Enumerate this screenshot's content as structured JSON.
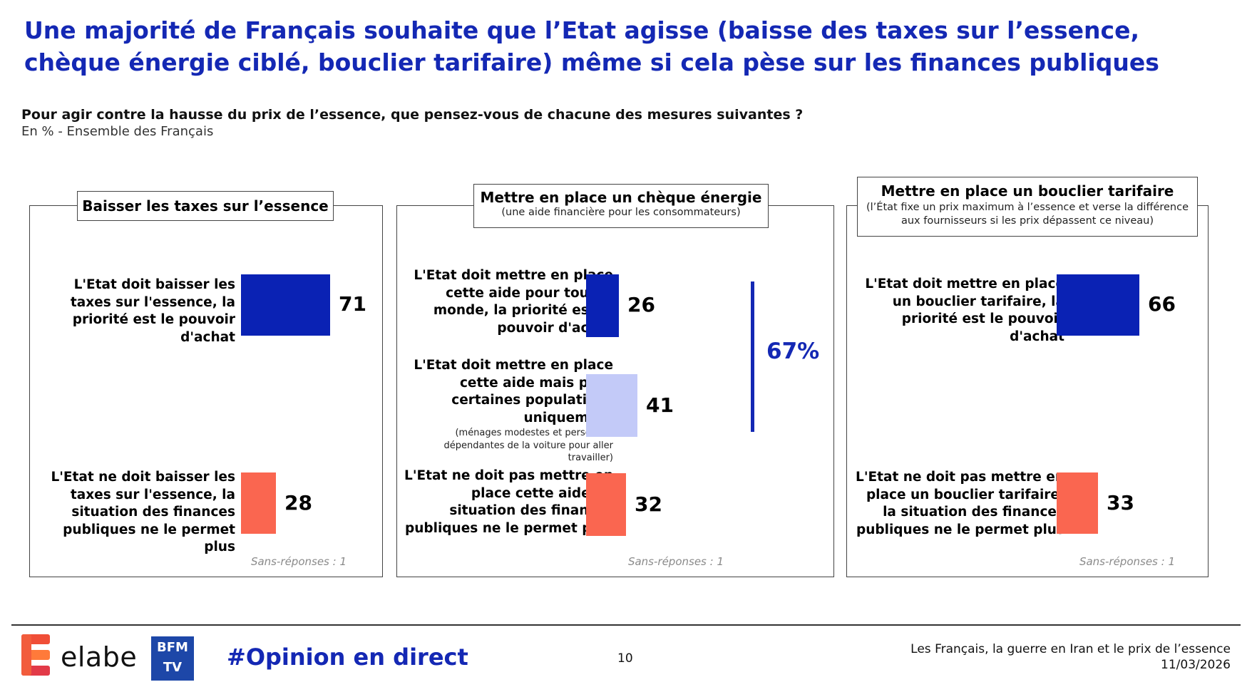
{
  "title": "Une majorité de Français souhaite que l’Etat agisse (baisse des taxes sur l’essence, chèque énergie ciblé, bouclier tarifaire) même si cela pèse sur les finances publiques",
  "question": "Pour agir contre la hausse du prix de l’essence, que pensez-vous de chacune des mesures suivantes ?",
  "subquestion": "En % - Ensemble des Français",
  "colors": {
    "title": "#1428b4",
    "dark_blue": "#0a22b4",
    "light_blue": "#c3caf8",
    "coral": "#fa6650"
  },
  "chart_data": [
    {
      "type": "bar",
      "title": "Baisser les taxes sur l’essence",
      "subtitle": "",
      "categories": [
        "L'Etat doit baisser les taxes sur l'essence, la priorité est le pouvoir d'achat",
        "L'Etat ne doit baisser les taxes sur l'essence, la situation des finances publiques ne le permet plus"
      ],
      "values": [
        71,
        28
      ],
      "note": "Sans-réponses : 1"
    },
    {
      "type": "bar",
      "title": "Mettre en place un chèque énergie",
      "subtitle": "(une aide financière pour les consommateurs)",
      "categories": [
        "L'Etat doit mettre en place cette aide pour tout le monde, la priorité est le pouvoir d'achat",
        "L'Etat doit mettre en place cette aide mais pour certaines populations uniquement",
        "L'Etat ne doit pas mettre en place cette aide, la situation des finances publiques ne le permet plus"
      ],
      "category_note": "(ménages modestes et personnes dépendantes de la voiture pour aller travailler)",
      "values": [
        26,
        41,
        32
      ],
      "total_label": "67%",
      "note": "Sans-réponses : 1"
    },
    {
      "type": "bar",
      "title": "Mettre en place un bouclier tarifaire",
      "subtitle": "(l’État fixe un prix maximum à l’essence et verse la différence aux fournisseurs si les prix dépassent ce niveau)",
      "categories": [
        "L'Etat doit mettre en place un bouclier tarifaire, la priorité est le pouvoir d'achat",
        "L'Etat ne doit pas mettre en place un bouclier tarifaire, la situation des finances publiques ne le permet plus"
      ],
      "values": [
        66,
        33
      ],
      "note": "Sans-réponses : 1"
    }
  ],
  "footer": {
    "brand": "elabe",
    "tv_logo": "BFM TV",
    "hashtag": "#Opinion en direct",
    "page": "10",
    "study": "Les Français, la guerre en Iran et le prix de l’essence",
    "date": "11/03/2026"
  }
}
